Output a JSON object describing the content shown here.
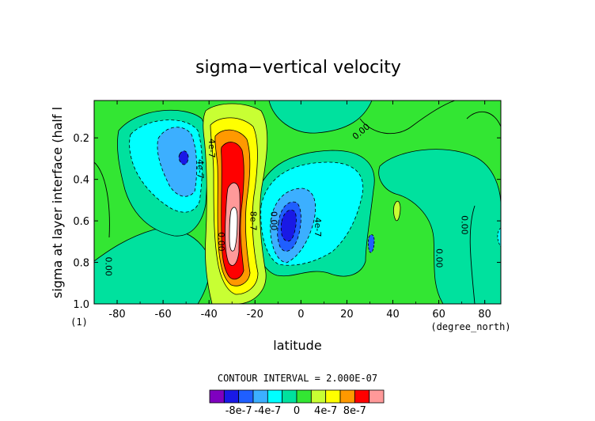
{
  "chart_data": {
    "type": "heatmap",
    "title": "sigma−vertical velocity",
    "xlabel": "latitude",
    "ylabel": "sigma at layer interface (half l",
    "x_units": "(degree_north)",
    "y_units": "(1)",
    "xlim": [
      -90,
      87
    ],
    "ylim": [
      1.0,
      0.02
    ],
    "x_ticks": [
      "-80",
      "-60",
      "-40",
      "-20",
      "0",
      "20",
      "40",
      "60",
      "80"
    ],
    "x_tick_values": [
      -80,
      -60,
      -40,
      -20,
      0,
      20,
      40,
      60,
      80
    ],
    "y_ticks": [
      "0.2",
      "0.4",
      "0.6",
      "0.8",
      "1.0"
    ],
    "y_tick_values": [
      0.2,
      0.4,
      0.6,
      0.8,
      1.0
    ],
    "contour_interval_text": "CONTOUR INTERVAL = 2.000E-07",
    "contour_interval": 2e-07,
    "colorbar": {
      "colors": [
        "#7f00bf",
        "#1919e6",
        "#1f5fff",
        "#3cafff",
        "#00ffff",
        "#00e19e",
        "#33e633",
        "#c8ff33",
        "#ffff00",
        "#ff9900",
        "#ff0000",
        "#ff9999"
      ],
      "tick_labels": [
        "-8e-7",
        "-4e-7",
        "0",
        "4e-7",
        "8e-7"
      ],
      "bins": [
        "<-1e-6",
        "-1e-6..-8e-7",
        "-8e-7..-6e-7",
        "-6e-7..-4e-7",
        "-4e-7..-2e-7",
        "-2e-7..0",
        "0..2e-7",
        "2e-7..4e-7",
        "4e-7..6e-7",
        "6e-7..8e-7",
        "8e-7..1e-6",
        ">1e-6"
      ]
    },
    "features": [
      {
        "kind": "trough",
        "lat": -47,
        "sigma": 0.3,
        "value": -8e-07
      },
      {
        "kind": "trough",
        "lat": -5,
        "sigma": 0.65,
        "value": -8e-07
      },
      {
        "kind": "peak",
        "lat": -25,
        "sigma": 0.7,
        "value": 1.2e-06
      }
    ],
    "contour_labels": [
      {
        "text": "0.00",
        "lat": 27,
        "sigma": 0.18
      },
      {
        "text": "4e-7",
        "lat": -40,
        "sigma": 0.25
      },
      {
        "text": "4e-7",
        "lat": -45,
        "sigma": 0.35
      },
      {
        "text": "8e-7",
        "lat": -22,
        "sigma": 0.6
      },
      {
        "text": "0.00",
        "lat": -13,
        "sigma": 0.6
      },
      {
        "text": "4e-7",
        "lat": 6,
        "sigma": 0.63
      },
      {
        "text": "0.00",
        "lat": -36,
        "sigma": 0.7
      },
      {
        "text": "0.00",
        "lat": -85,
        "sigma": 0.82
      },
      {
        "text": "0.00",
        "lat": 70,
        "sigma": 0.62
      },
      {
        "text": "0.00",
        "lat": 59,
        "sigma": 0.78
      }
    ]
  }
}
